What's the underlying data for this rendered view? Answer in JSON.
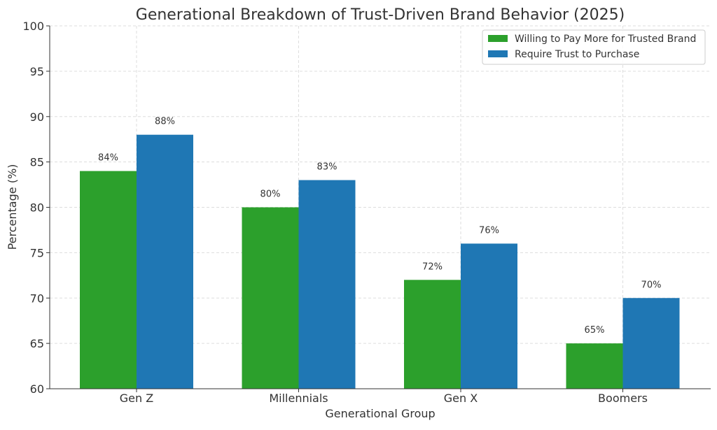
{
  "chart_data": {
    "type": "bar",
    "title": "Generational Breakdown of Trust-Driven Brand Behavior (2025)",
    "xlabel": "Generational Group",
    "ylabel": "Percentage (%)",
    "ylim": [
      60,
      100
    ],
    "yticks": [
      60,
      65,
      70,
      75,
      80,
      85,
      90,
      95,
      100
    ],
    "categories": [
      "Gen Z",
      "Millennials",
      "Gen X",
      "Boomers"
    ],
    "series": [
      {
        "name": "Willing to Pay More for Trusted Brand",
        "values": [
          84,
          80,
          72,
          65
        ],
        "color": "#2ca02c",
        "labels": [
          "84%",
          "80%",
          "72%",
          "65%"
        ]
      },
      {
        "name": "Require Trust to Purchase",
        "values": [
          88,
          83,
          76,
          70
        ],
        "color": "#1f77b4",
        "labels": [
          "88%",
          "83%",
          "76%",
          "70%"
        ]
      }
    ],
    "grid": true,
    "legend": "top-right"
  }
}
